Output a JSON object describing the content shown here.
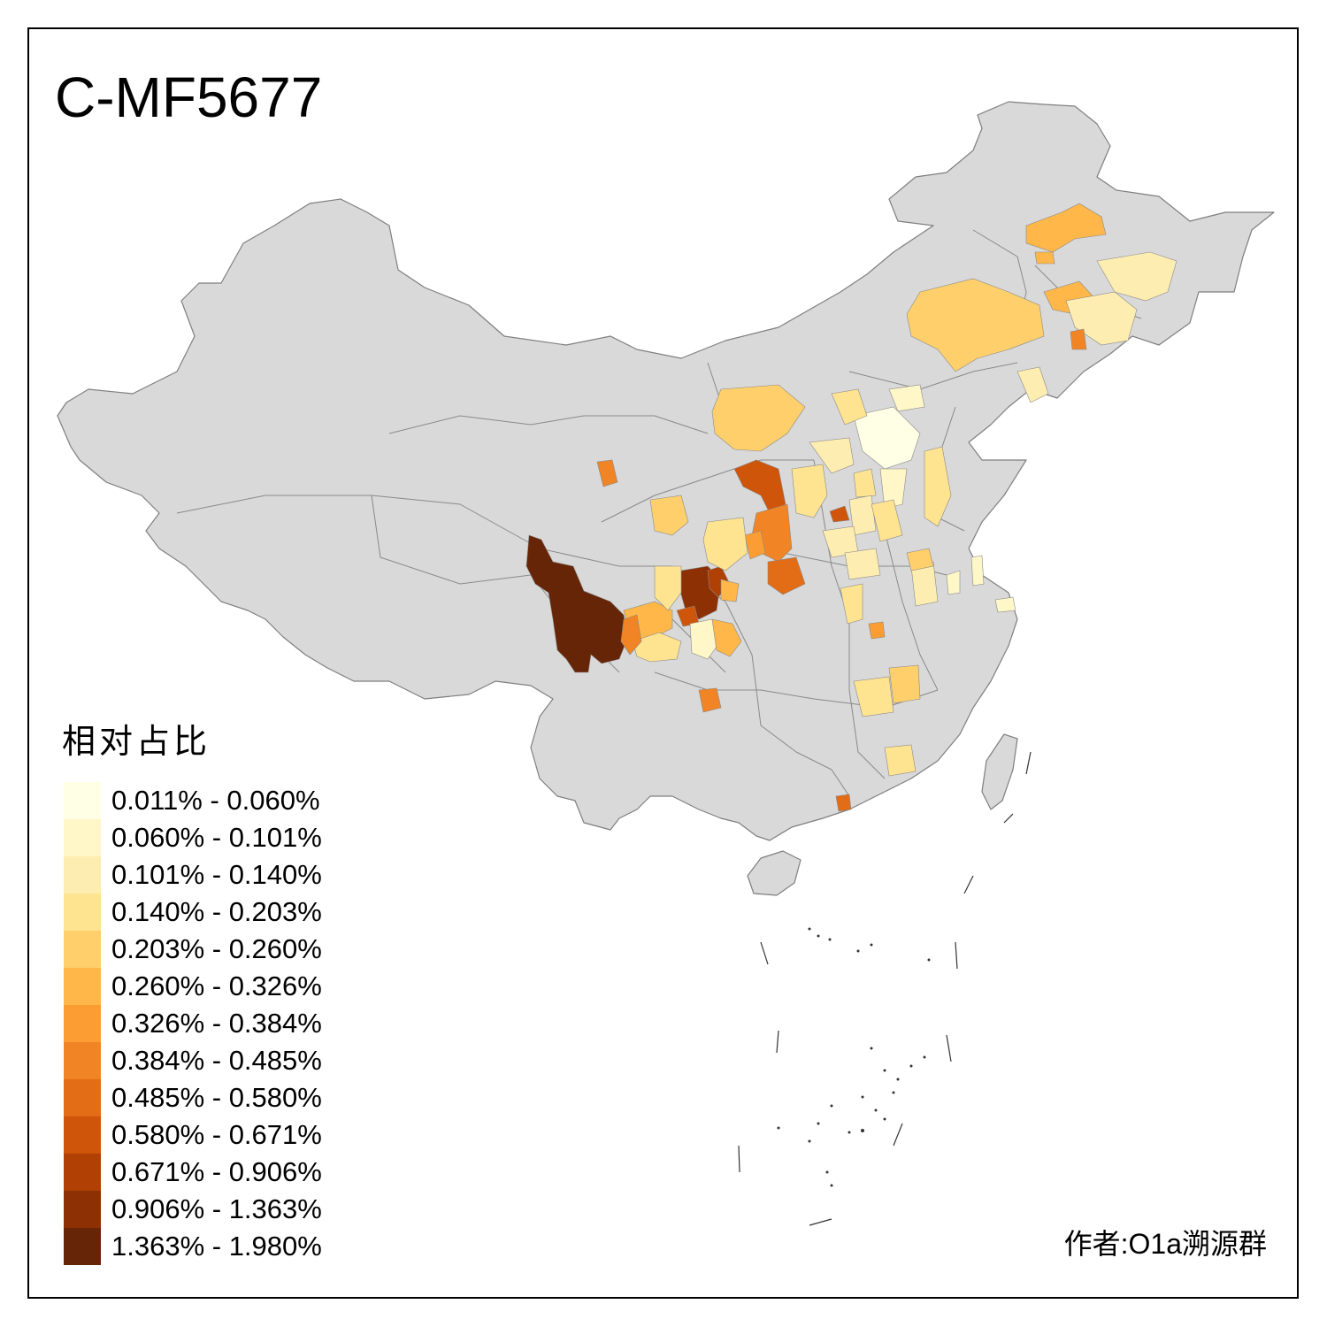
{
  "title": "C-MF5677",
  "legend": {
    "title": "相对占比",
    "items": [
      {
        "label": "0.011% - 0.060%",
        "color": "#FFFFE5"
      },
      {
        "label": "0.060% - 0.101%",
        "color": "#FFF7C8"
      },
      {
        "label": "0.101% - 0.140%",
        "color": "#FEEDB0"
      },
      {
        "label": "0.140% - 0.203%",
        "color": "#FEE391"
      },
      {
        "label": "0.203% - 0.260%",
        "color": "#FECF6A"
      },
      {
        "label": "0.260% - 0.326%",
        "color": "#FEB748"
      },
      {
        "label": "0.326% - 0.384%",
        "color": "#FC9D33"
      },
      {
        "label": "0.384% - 0.485%",
        "color": "#F18424"
      },
      {
        "label": "0.485% - 0.580%",
        "color": "#E36C16"
      },
      {
        "label": "0.580% - 0.671%",
        "color": "#CE550A"
      },
      {
        "label": "0.671% - 0.906%",
        "color": "#B14004"
      },
      {
        "label": "0.906% - 1.363%",
        "color": "#8D3004"
      },
      {
        "label": "1.363% - 1.980%",
        "color": "#662506"
      }
    ]
  },
  "author": "作者:O1a溯源群",
  "colors": {
    "land": "#D9D9D9",
    "border": "#7F7F7F",
    "frame": "#000000"
  }
}
